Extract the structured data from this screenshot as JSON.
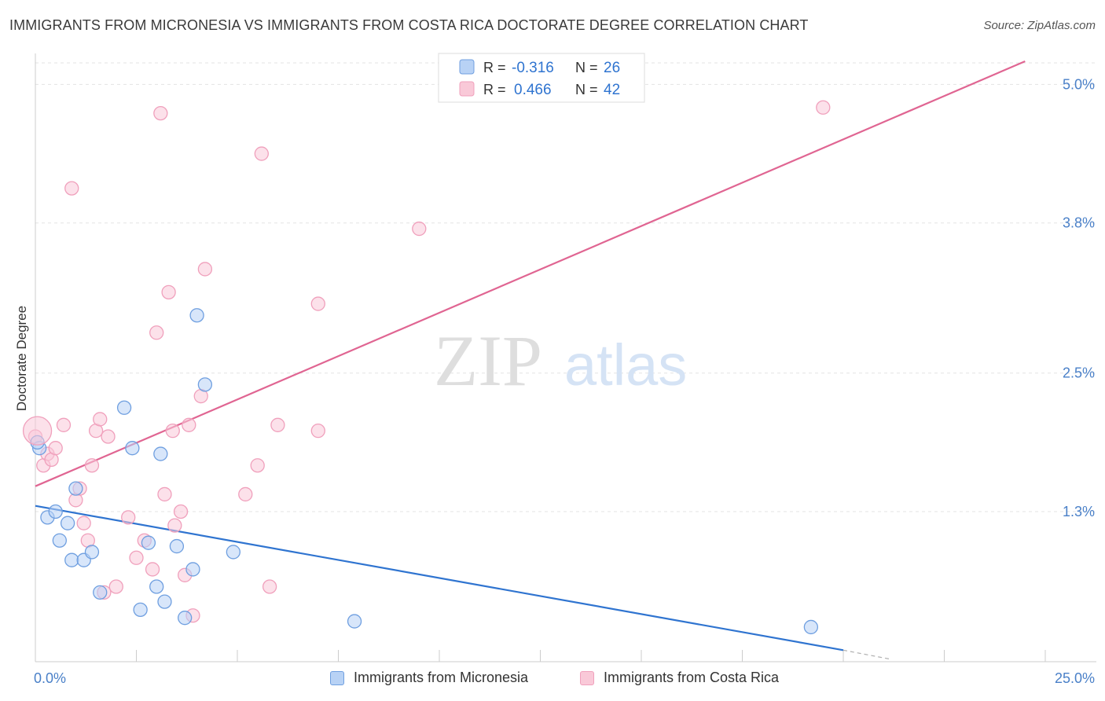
{
  "title": "IMMIGRANTS FROM MICRONESIA VS IMMIGRANTS FROM COSTA RICA DOCTORATE DEGREE CORRELATION CHART",
  "source": "Source: ZipAtlas.com",
  "watermark": {
    "zip": "ZIP",
    "atlas": "atlas"
  },
  "chart_data": {
    "type": "scatter",
    "ylabel": "Doctorate Degree",
    "xlim": [
      0,
      25
    ],
    "ylim": [
      0,
      5.2
    ],
    "x_tick_labels": [
      "0.0%",
      "25.0%"
    ],
    "y_ticks": [
      {
        "value": 1.3,
        "label": "1.3%"
      },
      {
        "value": 2.5,
        "label": "2.5%"
      },
      {
        "value": 3.8,
        "label": "3.8%"
      },
      {
        "value": 5.0,
        "label": "5.0%"
      }
    ],
    "grid": "horizontal-dashed",
    "legend_top": [
      {
        "r_label": "R = ",
        "r_value": "-0.316",
        "n_label": "N = ",
        "n_value": "26"
      },
      {
        "r_label": "R = ",
        "r_value": "0.466",
        "n_label": "N = ",
        "n_value": "42"
      }
    ],
    "series": [
      {
        "name": "Immigrants from Micronesia",
        "color": "#6f9fe0",
        "fill": "#b8d2f5",
        "line_color": "#2f74d0",
        "trend": {
          "x0": 0,
          "y0": 1.35,
          "x1": 20,
          "y1": 0.1,
          "dash_to_x": 21.2,
          "dash_to_y": 0.02
        },
        "points": [
          [
            0.1,
            1.85
          ],
          [
            0.3,
            1.25
          ],
          [
            0.5,
            1.3
          ],
          [
            0.6,
            1.05
          ],
          [
            0.8,
            1.2
          ],
          [
            0.9,
            0.88
          ],
          [
            1.0,
            1.5
          ],
          [
            1.2,
            0.88
          ],
          [
            1.4,
            0.95
          ],
          [
            1.6,
            0.6
          ],
          [
            2.2,
            2.2
          ],
          [
            2.4,
            1.85
          ],
          [
            2.6,
            0.45
          ],
          [
            2.8,
            1.03
          ],
          [
            3.0,
            0.65
          ],
          [
            3.1,
            1.8
          ],
          [
            3.2,
            0.52
          ],
          [
            3.5,
            1.0
          ],
          [
            3.7,
            0.38
          ],
          [
            3.9,
            0.8
          ],
          [
            4.0,
            3.0
          ],
          [
            4.2,
            2.4
          ],
          [
            4.9,
            0.95
          ],
          [
            7.9,
            0.35
          ],
          [
            19.2,
            0.3
          ],
          [
            0.05,
            1.9
          ]
        ]
      },
      {
        "name": "Immigrants from Costa Rica",
        "color": "#f0a0bc",
        "fill": "#f9c9d8",
        "line_color": "#e06592",
        "trend": {
          "x0": 0,
          "y0": 1.52,
          "x1": 24.5,
          "y1": 5.2
        },
        "points": [
          [
            0.0,
            1.95
          ],
          [
            0.2,
            1.7
          ],
          [
            0.3,
            1.8
          ],
          [
            0.4,
            1.75
          ],
          [
            0.5,
            1.85
          ],
          [
            0.7,
            2.05
          ],
          [
            0.9,
            4.1
          ],
          [
            1.0,
            1.4
          ],
          [
            1.1,
            1.5
          ],
          [
            1.2,
            1.2
          ],
          [
            1.3,
            1.05
          ],
          [
            1.4,
            1.7
          ],
          [
            1.5,
            2.0
          ],
          [
            1.6,
            2.1
          ],
          [
            1.8,
            1.95
          ],
          [
            2.0,
            0.65
          ],
          [
            1.7,
            0.6
          ],
          [
            2.3,
            1.25
          ],
          [
            2.5,
            0.9
          ],
          [
            2.7,
            1.05
          ],
          [
            2.9,
            0.8
          ],
          [
            3.0,
            2.85
          ],
          [
            3.1,
            4.75
          ],
          [
            3.3,
            3.2
          ],
          [
            3.4,
            2.0
          ],
          [
            3.6,
            1.3
          ],
          [
            3.8,
            2.05
          ],
          [
            3.9,
            0.4
          ],
          [
            3.7,
            0.75
          ],
          [
            3.2,
            1.45
          ],
          [
            4.1,
            2.3
          ],
          [
            3.45,
            1.18
          ],
          [
            5.2,
            1.45
          ],
          [
            5.5,
            1.7
          ],
          [
            5.6,
            4.4
          ],
          [
            5.8,
            0.65
          ],
          [
            6.0,
            2.05
          ],
          [
            7.0,
            2.0
          ],
          [
            7.0,
            3.1
          ],
          [
            9.5,
            3.75
          ],
          [
            19.5,
            4.8
          ],
          [
            4.2,
            3.4
          ]
        ]
      }
    ],
    "big_points": [
      {
        "series": 1,
        "x": 0.05,
        "y": 2.0
      }
    ]
  }
}
